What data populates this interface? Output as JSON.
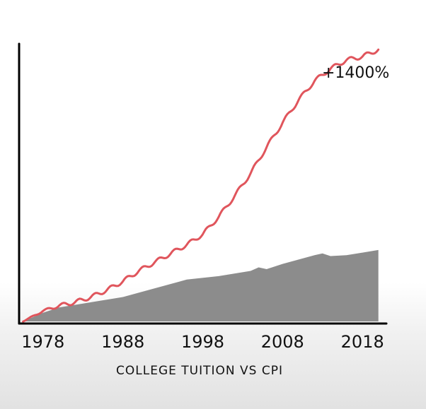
{
  "chart_data": {
    "type": "area",
    "title": "",
    "xlabel": "COLLEGE TUITION VS CPI",
    "ylabel": "",
    "xlim": [
      1975,
      2021
    ],
    "ylim": [
      0,
      1500
    ],
    "x_ticks": [
      "1978",
      "1988",
      "1998",
      "2008",
      "2018"
    ],
    "annotation": "+1400%",
    "grid": false,
    "colors": {
      "tuition": "#e0555c",
      "cpi": "#8c8c8c",
      "axis": "#000000"
    },
    "series": [
      {
        "key": "tuition",
        "chart": "line",
        "x": [
          1975.5,
          1978,
          1980,
          1982,
          1984,
          1986,
          1988,
          1990,
          1992,
          1994,
          1996,
          1998,
          2000,
          2002,
          2004,
          2006,
          2008,
          2010,
          2012,
          2014,
          2016,
          2018,
          2019,
          2020
        ],
        "values": [
          0,
          60,
          90,
          110,
          140,
          180,
          230,
          290,
          340,
          390,
          440,
          500,
          600,
          720,
          850,
          1000,
          1140,
          1270,
          1380,
          1450,
          1500,
          1520,
          1540,
          1560
        ]
      },
      {
        "key": "cpi",
        "chart": "area",
        "x": [
          1975.5,
          1978,
          1980,
          1984,
          1988,
          1992,
          1996,
          2000,
          2004,
          2005,
          2006,
          2008,
          2012,
          2013,
          2014,
          2016,
          2018,
          2020
        ],
        "values": [
          0,
          50,
          80,
          110,
          140,
          190,
          240,
          260,
          290,
          310,
          300,
          330,
          380,
          390,
          375,
          380,
          395,
          410
        ]
      }
    ]
  }
}
